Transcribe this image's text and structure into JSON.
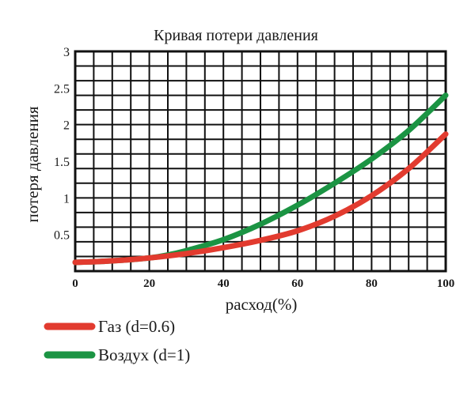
{
  "chart_data": {
    "type": "line",
    "title": "Кривая потери давления",
    "xlabel": "расход(%)",
    "ylabel": "потеря давления",
    "xlim": [
      0,
      100
    ],
    "ylim": [
      0,
      3
    ],
    "x_ticks": [
      "0",
      "20",
      "40",
      "60",
      "80",
      "100"
    ],
    "y_ticks": [
      "0.5",
      "1",
      "1.5",
      "2",
      "2.5",
      "3"
    ],
    "grid": true,
    "legend_position": "bottom-left",
    "series": [
      {
        "name": "Газ (d=0.6)",
        "color": "#e23b2f",
        "x": [
          0,
          10,
          20,
          30,
          40,
          50,
          60,
          70,
          80,
          90,
          100
        ],
        "y": [
          0.12,
          0.14,
          0.18,
          0.24,
          0.32,
          0.42,
          0.55,
          0.75,
          1.03,
          1.4,
          1.87
        ]
      },
      {
        "name": "Воздух (d=1)",
        "color": "#1b9443",
        "x": [
          0,
          10,
          20,
          25,
          30,
          40,
          50,
          60,
          70,
          80,
          90,
          100
        ],
        "y": [
          0.12,
          0.14,
          0.18,
          0.22,
          0.28,
          0.43,
          0.64,
          0.9,
          1.2,
          1.53,
          1.92,
          2.4
        ]
      }
    ]
  }
}
